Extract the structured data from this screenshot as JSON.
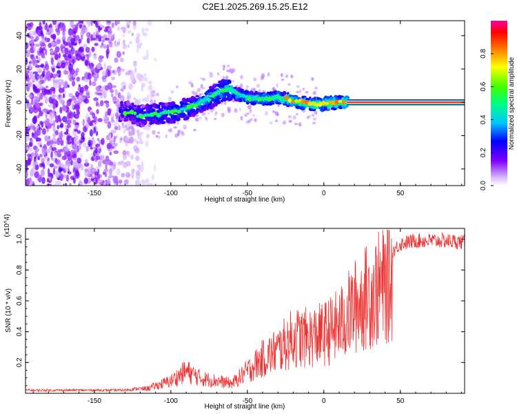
{
  "title": "C2E1.2025.269.15.25.E12",
  "chart_data": [
    {
      "type": "heatmap",
      "name": "spectrogram",
      "xlabel": "Height of straight line (km)",
      "ylabel": "Frequency (Hz)",
      "xlim": [
        -195,
        92
      ],
      "ylim": [
        -50,
        49
      ],
      "xticks": [
        -150,
        -100,
        -50,
        0,
        50
      ],
      "yticks": [
        -40,
        -20,
        0,
        20,
        40
      ],
      "colorbar": {
        "label": "Normalized spectral amplitude",
        "range": [
          0,
          1
        ],
        "ticks": [
          0.0,
          0.2,
          0.4,
          0.6,
          0.8
        ]
      },
      "ridge": [
        {
          "x": -133,
          "f": -5
        },
        {
          "x": -120,
          "f": -8
        },
        {
          "x": -110,
          "f": -7
        },
        {
          "x": -100,
          "f": -6
        },
        {
          "x": -90,
          "f": -4
        },
        {
          "x": -80,
          "f": 0
        },
        {
          "x": -70,
          "f": 5
        },
        {
          "x": -63,
          "f": 8
        },
        {
          "x": -57,
          "f": 5
        },
        {
          "x": -50,
          "f": 3
        },
        {
          "x": -40,
          "f": 2
        },
        {
          "x": -30,
          "f": 3
        },
        {
          "x": -20,
          "f": 1
        },
        {
          "x": -10,
          "f": -1
        },
        {
          "x": 0,
          "f": -1
        },
        {
          "x": 10,
          "f": 0
        },
        {
          "x": 15,
          "f": 0
        }
      ],
      "steady_line": {
        "x_start": 15,
        "x_end": 92,
        "f": 0,
        "amplitude": 1.0
      }
    },
    {
      "type": "line",
      "name": "snr",
      "xlabel": "Height of straight line (km)",
      "ylabel": "SNR (10 * v/v)",
      "y_multiplier": "(x10^4)",
      "xlim": [
        -195,
        92
      ],
      "ylim": [
        0,
        1.07
      ],
      "xticks": [
        -150,
        -100,
        -50,
        0,
        50
      ],
      "yticks": [
        0.2,
        0.4,
        0.6,
        0.8,
        1.0
      ],
      "series": [
        {
          "name": "SNR",
          "color": "#ee3333",
          "envelope": [
            {
              "x": -195,
              "y": 0.02
            },
            {
              "x": -150,
              "y": 0.02
            },
            {
              "x": -130,
              "y": 0.02
            },
            {
              "x": -115,
              "y": 0.04
            },
            {
              "x": -100,
              "y": 0.1
            },
            {
              "x": -90,
              "y": 0.18
            },
            {
              "x": -80,
              "y": 0.12
            },
            {
              "x": -70,
              "y": 0.1
            },
            {
              "x": -60,
              "y": 0.08
            },
            {
              "x": -50,
              "y": 0.18
            },
            {
              "x": -40,
              "y": 0.28
            },
            {
              "x": -30,
              "y": 0.35
            },
            {
              "x": -20,
              "y": 0.45
            },
            {
              "x": -10,
              "y": 0.45
            },
            {
              "x": 0,
              "y": 0.48
            },
            {
              "x": 10,
              "y": 0.55
            },
            {
              "x": 20,
              "y": 0.7
            },
            {
              "x": 30,
              "y": 0.8
            },
            {
              "x": 40,
              "y": 0.88
            },
            {
              "x": 50,
              "y": 0.98
            },
            {
              "x": 60,
              "y": 1.0
            },
            {
              "x": 70,
              "y": 1.0
            },
            {
              "x": 80,
              "y": 1.0
            },
            {
              "x": 92,
              "y": 0.99
            }
          ]
        }
      ]
    }
  ]
}
